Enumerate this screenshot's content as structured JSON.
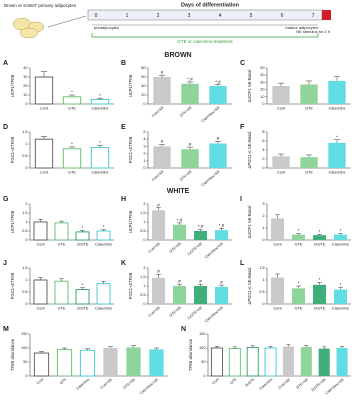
{
  "diagram": {
    "cells_label": "Brown or scWAT primary adipocytes",
    "title": "Days of differentiation",
    "days": [
      0,
      1,
      2,
      3,
      4,
      5,
      6,
      7
    ],
    "stage_start": "preadipocytes",
    "stage_end": "mature adipocytes",
    "treatment": "GTE or catechins-treatment",
    "stimulus": "NE stimulus for 2 h"
  },
  "sections": [
    "BROWN",
    "WHITE"
  ],
  "chart_data": [
    {
      "type": "bar",
      "label": "A",
      "ylabel": "UCP1/TFIIB",
      "categories": [
        "Cont",
        "GTE",
        "Catechins"
      ],
      "values": [
        30,
        8,
        5
      ],
      "errors": [
        6,
        2,
        1.5
      ],
      "annotations": [
        null,
        "*",
        "*"
      ],
      "colors": [
        "#555555",
        "#5cbf6e",
        "#3cc8d0"
      ],
      "filled": [
        false,
        false,
        false
      ],
      "ylim": [
        0,
        40
      ],
      "yticks": [
        0,
        10,
        20,
        30,
        40
      ]
    },
    {
      "type": "bar",
      "label": "B",
      "ylabel": "UCP1/TFIIB",
      "categories": [
        "Cont+NE",
        "GTE+NE",
        "Catechins+NE"
      ],
      "values": [
        60,
        45,
        40
      ],
      "errors": [
        4,
        4,
        3
      ],
      "annotations": [
        "#",
        "*,#",
        "*,#"
      ],
      "colors": [
        "#c9c9c9",
        "#8fd49b",
        "#5fdde3"
      ],
      "filled": [
        true,
        true,
        true
      ],
      "ylim": [
        0,
        80
      ],
      "yticks": [
        0,
        20,
        40,
        60,
        80
      ]
    },
    {
      "type": "bar",
      "label": "C",
      "ylabel": "ΔUCP1 NE-Basal",
      "categories": [
        "Cont",
        "GTE",
        "Catechins"
      ],
      "values": [
        25,
        27,
        32
      ],
      "errors": [
        4,
        5,
        6
      ],
      "annotations": [
        null,
        null,
        null
      ],
      "colors": [
        "#c9c9c9",
        "#8fd49b",
        "#5fdde3"
      ],
      "filled": [
        true,
        true,
        true
      ],
      "ylim": [
        0,
        50
      ],
      "yticks": [
        0,
        10,
        20,
        30,
        40,
        50
      ]
    },
    {
      "type": "bar",
      "label": "D",
      "ylabel": "PGC1-α/TFIIB",
      "categories": [
        "Cont",
        "GTE",
        "Catechins"
      ],
      "values": [
        1.2,
        0.8,
        0.85
      ],
      "errors": [
        0.12,
        0.08,
        0.1
      ],
      "annotations": [
        null,
        "*",
        "*"
      ],
      "colors": [
        "#555555",
        "#5cbf6e",
        "#3cc8d0"
      ],
      "filled": [
        false,
        false,
        false
      ],
      "ylim": [
        0,
        1.5
      ],
      "yticks": [
        0,
        0.5,
        1,
        1.5
      ]
    },
    {
      "type": "bar",
      "label": "E",
      "ylabel": "PGC1-α/TFIIB",
      "categories": [
        "Cont+NE",
        "GTE+NE",
        "Catechins+NE"
      ],
      "values": [
        3.0,
        2.6,
        3.4
      ],
      "errors": [
        0.3,
        0.3,
        0.3
      ],
      "annotations": [
        "#",
        "#",
        "#"
      ],
      "colors": [
        "#c9c9c9",
        "#8fd49b",
        "#5fdde3"
      ],
      "filled": [
        true,
        true,
        true
      ],
      "ylim": [
        0,
        5
      ],
      "yticks": [
        0,
        1,
        2,
        3,
        4,
        5
      ]
    },
    {
      "type": "bar",
      "label": "F",
      "ylabel": "ΔPGC1-α NE-Basal",
      "categories": [
        "Cont",
        "GTE",
        "Catechins"
      ],
      "values": [
        2.6,
        2.4,
        5.6
      ],
      "errors": [
        0.5,
        0.5,
        0.7
      ],
      "annotations": [
        null,
        null,
        "*"
      ],
      "colors": [
        "#c9c9c9",
        "#8fd49b",
        "#5fdde3"
      ],
      "filled": [
        true,
        true,
        true
      ],
      "ylim": [
        0,
        8
      ],
      "yticks": [
        0,
        2,
        4,
        6,
        8
      ]
    },
    {
      "type": "bar",
      "label": "G",
      "ylabel": "UCP1/TFIIB",
      "categories": [
        "Cont",
        "GTE",
        "2xGTE",
        "Catechins"
      ],
      "values": [
        1.0,
        0.95,
        0.45,
        0.5
      ],
      "errors": [
        0.15,
        0.1,
        0.08,
        0.08
      ],
      "annotations": [
        null,
        null,
        "*",
        "*"
      ],
      "colors": [
        "#555555",
        "#5cbf6e",
        "#2a9d6a",
        "#3cc8d0"
      ],
      "filled": [
        false,
        false,
        false,
        false
      ],
      "ylim": [
        0,
        2
      ],
      "yticks": [
        0,
        0.5,
        1,
        1.5,
        2
      ]
    },
    {
      "type": "bar",
      "label": "H",
      "ylabel": "UCP1/TFIIB",
      "categories": [
        "Cont+NE",
        "GTE+NE",
        "2xGTE+NE",
        "Catechins+NE"
      ],
      "values": [
        1.65,
        0.85,
        0.5,
        0.55
      ],
      "errors": [
        0.15,
        0.1,
        0.08,
        0.1
      ],
      "annotations": [
        "#",
        "*,#",
        "*,#",
        "*,#"
      ],
      "colors": [
        "#c9c9c9",
        "#8fd49b",
        "#3fae7a",
        "#5fdde3"
      ],
      "filled": [
        true,
        true,
        true,
        true
      ],
      "ylim": [
        0,
        2
      ],
      "yticks": [
        0,
        0.5,
        1,
        1.5,
        2
      ]
    },
    {
      "type": "bar",
      "label": "I",
      "ylabel": "ΔUCP1 NE-Basal",
      "categories": [
        "Cont",
        "GTE",
        "2xGTE",
        "Catechins"
      ],
      "values": [
        1.8,
        0.45,
        0.4,
        0.45
      ],
      "errors": [
        0.3,
        0.1,
        0.08,
        0.1
      ],
      "annotations": [
        null,
        "*",
        "*",
        "*"
      ],
      "colors": [
        "#c9c9c9",
        "#8fd49b",
        "#3fae7a",
        "#5fdde3"
      ],
      "filled": [
        true,
        true,
        true,
        true
      ],
      "ylim": [
        0,
        3
      ],
      "yticks": [
        0,
        1,
        2,
        3
      ]
    },
    {
      "type": "bar",
      "label": "J",
      "ylabel": "PGC1-α/TFIIB",
      "categories": [
        "Cont",
        "GTE",
        "2xGTE",
        "Catechins"
      ],
      "values": [
        1.0,
        0.95,
        0.6,
        0.85
      ],
      "errors": [
        0.1,
        0.1,
        0.08,
        0.1
      ],
      "annotations": [
        null,
        null,
        "*",
        null
      ],
      "colors": [
        "#555555",
        "#5cbf6e",
        "#2a9d6a",
        "#3cc8d0"
      ],
      "filled": [
        false,
        false,
        false,
        false
      ],
      "ylim": [
        0,
        1.5
      ],
      "yticks": [
        0,
        0.5,
        1,
        1.5
      ]
    },
    {
      "type": "bar",
      "label": "K",
      "ylabel": "PGC1-α/TFIIB",
      "categories": [
        "Cont+NE",
        "GTE+NE",
        "2xGTE+NE",
        "Catechins+NE"
      ],
      "values": [
        1.45,
        1.0,
        1.0,
        0.95
      ],
      "errors": [
        0.2,
        0.1,
        0.1,
        0.1
      ],
      "annotations": [
        "#",
        "#",
        "#",
        "#"
      ],
      "colors": [
        "#c9c9c9",
        "#8fd49b",
        "#3fae7a",
        "#5fdde3"
      ],
      "filled": [
        true,
        true,
        true,
        true
      ],
      "ylim": [
        0,
        2
      ],
      "yticks": [
        0,
        0.5,
        1,
        1.5,
        2
      ]
    },
    {
      "type": "bar",
      "label": "L",
      "ylabel": "ΔPGC1-α NE-Basal",
      "categories": [
        "Cont",
        "GTE",
        "2xGTE",
        "Catechins"
      ],
      "values": [
        1.1,
        0.65,
        0.8,
        0.6
      ],
      "errors": [
        0.15,
        0.1,
        0.1,
        0.1
      ],
      "annotations": [
        null,
        "*",
        "*",
        "*"
      ],
      "colors": [
        "#c9c9c9",
        "#8fd49b",
        "#3fae7a",
        "#5fdde3"
      ],
      "filled": [
        true,
        true,
        true,
        true
      ],
      "ylim": [
        0,
        1.5
      ],
      "yticks": [
        0,
        0.5,
        1,
        1.5
      ]
    },
    {
      "type": "bar",
      "label": "M",
      "ylabel": "TFIIB abundance",
      "categories": [
        "Cont",
        "GTE",
        "Catechins",
        "Cont+NE",
        "GTE+NE",
        "Catechins+NE"
      ],
      "values": [
        82,
        95,
        92,
        100,
        102,
        95
      ],
      "errors": [
        6,
        5,
        5,
        5,
        6,
        5
      ],
      "annotations": [
        null,
        null,
        null,
        null,
        null,
        null
      ],
      "colors": [
        "#555555",
        "#5cbf6e",
        "#3cc8d0",
        "#c9c9c9",
        "#8fd49b",
        "#5fdde3"
      ],
      "filled": [
        false,
        false,
        false,
        true,
        true,
        true
      ],
      "ylim": [
        0,
        150
      ],
      "yticks": [
        0,
        50,
        100,
        150
      ]
    },
    {
      "type": "bar",
      "label": "N",
      "ylabel": "TFIIB abundance",
      "categories": [
        "Cont",
        "GTE",
        "2xGTE",
        "Catechins",
        "Cont+NE",
        "GTE+NE",
        "2xGTE+NE",
        "Catechins+NE"
      ],
      "values": [
        100,
        98,
        102,
        100,
        105,
        103,
        98,
        100
      ],
      "errors": [
        6,
        6,
        6,
        6,
        7,
        6,
        6,
        6
      ],
      "annotations": [
        null,
        null,
        null,
        null,
        null,
        null,
        null,
        null
      ],
      "colors": [
        "#555555",
        "#5cbf6e",
        "#2a9d6a",
        "#3cc8d0",
        "#c9c9c9",
        "#8fd49b",
        "#3fae7a",
        "#5fdde3"
      ],
      "filled": [
        false,
        false,
        false,
        false,
        true,
        true,
        true,
        true
      ],
      "ylim": [
        0,
        150
      ],
      "yticks": [
        0,
        50,
        100,
        150
      ]
    }
  ]
}
